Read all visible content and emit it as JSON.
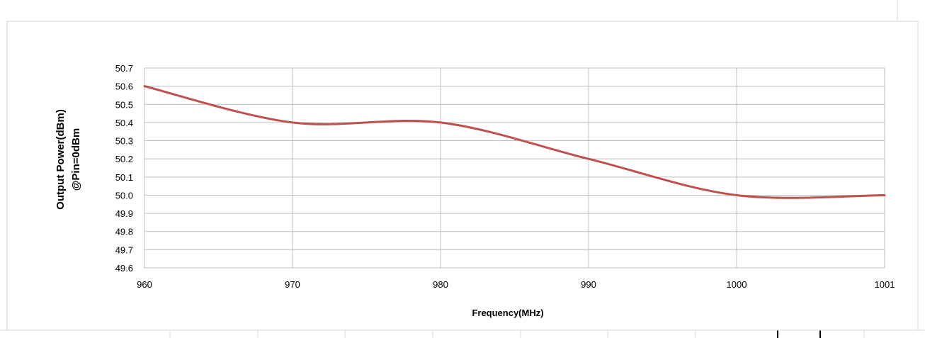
{
  "chart_data": {
    "type": "line",
    "title": "",
    "xlabel": "Frequency(MHz)",
    "ylabel_lines": [
      "Output Power(dBm)",
      "@Pin=0dBm"
    ],
    "categories": [
      "960",
      "970",
      "980",
      "990",
      "1000",
      "1001"
    ],
    "series": [
      {
        "values": [
          50.6,
          50.4,
          50.4,
          50.2,
          50.0,
          50.0
        ],
        "color": "#c0504d"
      }
    ],
    "y_ticks": [
      "50.7",
      "50.6",
      "50.5",
      "50.4",
      "50.3",
      "50.2",
      "50.1",
      "50.0",
      "49.9",
      "49.8",
      "49.7",
      "49.6"
    ],
    "ylim": [
      49.6,
      50.7
    ],
    "grid": true,
    "smooth": true,
    "legend": "none"
  }
}
